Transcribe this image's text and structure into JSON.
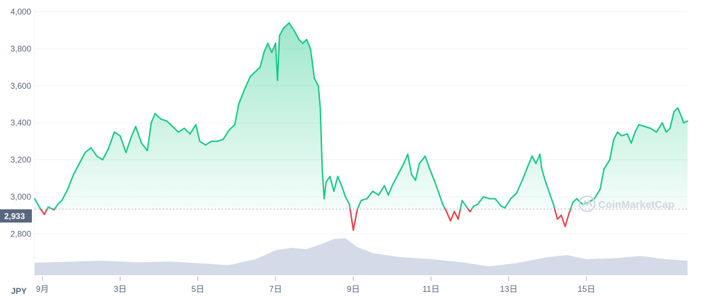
{
  "chart_data": {
    "type": "line",
    "currency": "JPY",
    "watermark": "CoinMarketCap",
    "current_price": 2933,
    "current_price_label": "2,933",
    "ylim": [
      2700,
      4000
    ],
    "yticks": [
      {
        "value": 2800,
        "label": "2,800"
      },
      {
        "value": 3000,
        "label": "3,000"
      },
      {
        "value": 3200,
        "label": "3,200"
      },
      {
        "value": 3400,
        "label": "3,400"
      },
      {
        "value": 3600,
        "label": "3,600"
      },
      {
        "value": 3800,
        "label": "3,800"
      },
      {
        "value": 4000,
        "label": "4,000"
      }
    ],
    "xlim": [
      0.8,
      17.6
    ],
    "xticks": [
      {
        "value": 1,
        "label": "9月"
      },
      {
        "value": 3,
        "label": "3日"
      },
      {
        "value": 5,
        "label": "5日"
      },
      {
        "value": 7,
        "label": "7日"
      },
      {
        "value": 9,
        "label": "9日"
      },
      {
        "value": 11,
        "label": "11日"
      },
      {
        "value": 13,
        "label": "13日"
      },
      {
        "value": 15,
        "label": "15日"
      }
    ],
    "colors": {
      "up": "#16c784",
      "down": "#ea3943",
      "volume": "#cfd6e4",
      "grid": "#eff2f5",
      "label_bg": "#58667e"
    },
    "price_series": [
      [
        0.8,
        2990
      ],
      [
        0.95,
        2935
      ],
      [
        1.05,
        2905
      ],
      [
        1.15,
        2945
      ],
      [
        1.3,
        2930
      ],
      [
        1.4,
        2960
      ],
      [
        1.5,
        2980
      ],
      [
        1.65,
        3040
      ],
      [
        1.8,
        3120
      ],
      [
        1.95,
        3180
      ],
      [
        2.1,
        3240
      ],
      [
        2.25,
        3265
      ],
      [
        2.4,
        3220
      ],
      [
        2.55,
        3200
      ],
      [
        2.7,
        3260
      ],
      [
        2.85,
        3350
      ],
      [
        3.0,
        3330
      ],
      [
        3.15,
        3240
      ],
      [
        3.3,
        3330
      ],
      [
        3.4,
        3380
      ],
      [
        3.55,
        3290
      ],
      [
        3.7,
        3250
      ],
      [
        3.8,
        3400
      ],
      [
        3.9,
        3450
      ],
      [
        4.05,
        3420
      ],
      [
        4.2,
        3410
      ],
      [
        4.35,
        3380
      ],
      [
        4.5,
        3350
      ],
      [
        4.65,
        3370
      ],
      [
        4.8,
        3340
      ],
      [
        4.95,
        3390
      ],
      [
        5.05,
        3300
      ],
      [
        5.2,
        3280
      ],
      [
        5.35,
        3300
      ],
      [
        5.5,
        3300
      ],
      [
        5.65,
        3310
      ],
      [
        5.8,
        3360
      ],
      [
        5.95,
        3390
      ],
      [
        6.05,
        3500
      ],
      [
        6.2,
        3580
      ],
      [
        6.35,
        3650
      ],
      [
        6.5,
        3680
      ],
      [
        6.6,
        3700
      ],
      [
        6.7,
        3780
      ],
      [
        6.8,
        3830
      ],
      [
        6.9,
        3780
      ],
      [
        7.0,
        3830
      ],
      [
        7.05,
        3630
      ],
      [
        7.1,
        3870
      ],
      [
        7.2,
        3910
      ],
      [
        7.35,
        3940
      ],
      [
        7.5,
        3890
      ],
      [
        7.6,
        3850
      ],
      [
        7.7,
        3830
      ],
      [
        7.8,
        3850
      ],
      [
        7.9,
        3800
      ],
      [
        8.0,
        3640
      ],
      [
        8.1,
        3600
      ],
      [
        8.15,
        3480
      ],
      [
        8.2,
        3150
      ],
      [
        8.25,
        2990
      ],
      [
        8.3,
        3080
      ],
      [
        8.4,
        3110
      ],
      [
        8.5,
        3030
      ],
      [
        8.6,
        3110
      ],
      [
        8.7,
        3060
      ],
      [
        8.8,
        3000
      ],
      [
        8.9,
        2960
      ],
      [
        8.95,
        2890
      ],
      [
        9.0,
        2820
      ],
      [
        9.1,
        2930
      ],
      [
        9.2,
        2980
      ],
      [
        9.35,
        2990
      ],
      [
        9.5,
        3030
      ],
      [
        9.65,
        3010
      ],
      [
        9.8,
        3060
      ],
      [
        9.9,
        3010
      ],
      [
        10.0,
        3060
      ],
      [
        10.15,
        3120
      ],
      [
        10.3,
        3180
      ],
      [
        10.4,
        3230
      ],
      [
        10.5,
        3120
      ],
      [
        10.6,
        3090
      ],
      [
        10.7,
        3180
      ],
      [
        10.85,
        3220
      ],
      [
        10.95,
        3160
      ],
      [
        11.1,
        3080
      ],
      [
        11.2,
        3020
      ],
      [
        11.3,
        2960
      ],
      [
        11.4,
        2920
      ],
      [
        11.5,
        2870
      ],
      [
        11.6,
        2920
      ],
      [
        11.7,
        2880
      ],
      [
        11.8,
        2980
      ],
      [
        11.9,
        2950
      ],
      [
        12.0,
        2920
      ],
      [
        12.1,
        2950
      ],
      [
        12.2,
        2960
      ],
      [
        12.35,
        3000
      ],
      [
        12.5,
        2990
      ],
      [
        12.65,
        2990
      ],
      [
        12.8,
        2950
      ],
      [
        12.9,
        2940
      ],
      [
        13.05,
        2990
      ],
      [
        13.2,
        3020
      ],
      [
        13.35,
        3090
      ],
      [
        13.5,
        3170
      ],
      [
        13.6,
        3220
      ],
      [
        13.7,
        3180
      ],
      [
        13.8,
        3230
      ],
      [
        13.85,
        3150
      ],
      [
        13.95,
        3080
      ],
      [
        14.05,
        3020
      ],
      [
        14.15,
        2960
      ],
      [
        14.25,
        2880
      ],
      [
        14.35,
        2900
      ],
      [
        14.45,
        2840
      ],
      [
        14.55,
        2910
      ],
      [
        14.65,
        2970
      ],
      [
        14.75,
        2990
      ],
      [
        14.9,
        2960
      ],
      [
        15.05,
        2970
      ],
      [
        15.2,
        2990
      ],
      [
        15.35,
        3040
      ],
      [
        15.45,
        3150
      ],
      [
        15.6,
        3200
      ],
      [
        15.7,
        3310
      ],
      [
        15.8,
        3350
      ],
      [
        15.9,
        3330
      ],
      [
        16.05,
        3340
      ],
      [
        16.15,
        3290
      ],
      [
        16.25,
        3350
      ],
      [
        16.35,
        3390
      ],
      [
        16.5,
        3380
      ],
      [
        16.65,
        3370
      ],
      [
        16.8,
        3350
      ],
      [
        16.95,
        3400
      ],
      [
        17.05,
        3350
      ],
      [
        17.15,
        3370
      ],
      [
        17.25,
        3460
      ],
      [
        17.35,
        3480
      ],
      [
        17.45,
        3430
      ],
      [
        17.5,
        3400
      ],
      [
        17.6,
        3410
      ]
    ],
    "volume_series": [
      [
        0.8,
        0.31
      ],
      [
        1.5,
        0.33
      ],
      [
        2.5,
        0.36
      ],
      [
        3.5,
        0.32
      ],
      [
        4.3,
        0.34
      ],
      [
        5.0,
        0.3
      ],
      [
        5.8,
        0.25
      ],
      [
        6.5,
        0.4
      ],
      [
        7.0,
        0.62
      ],
      [
        7.4,
        0.68
      ],
      [
        7.8,
        0.65
      ],
      [
        8.2,
        0.78
      ],
      [
        8.5,
        0.9
      ],
      [
        8.8,
        0.92
      ],
      [
        9.1,
        0.7
      ],
      [
        9.5,
        0.55
      ],
      [
        10.2,
        0.45
      ],
      [
        11.0,
        0.4
      ],
      [
        11.8,
        0.32
      ],
      [
        12.5,
        0.22
      ],
      [
        13.2,
        0.3
      ],
      [
        14.0,
        0.45
      ],
      [
        14.5,
        0.5
      ],
      [
        15.0,
        0.4
      ],
      [
        15.7,
        0.42
      ],
      [
        16.4,
        0.48
      ],
      [
        17.0,
        0.4
      ],
      [
        17.6,
        0.36
      ]
    ]
  }
}
